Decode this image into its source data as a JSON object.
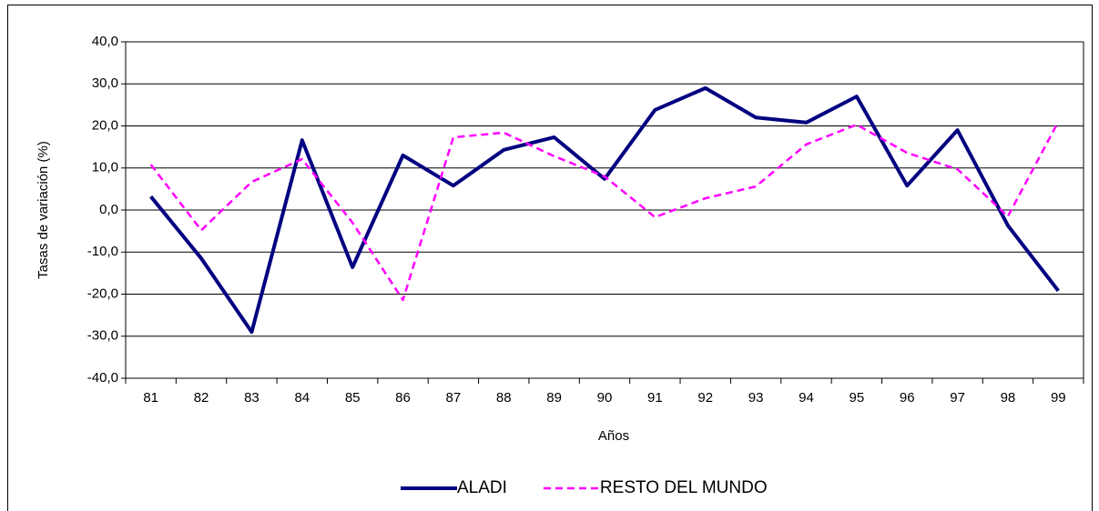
{
  "chart_data": {
    "type": "line",
    "x_label": "Años",
    "y_label": "Tasas de variación (%)",
    "categories": [
      "81",
      "82",
      "83",
      "84",
      "85",
      "86",
      "87",
      "88",
      "89",
      "90",
      "91",
      "92",
      "93",
      "94",
      "95",
      "96",
      "97",
      "98",
      "99"
    ],
    "series": [
      {
        "name": "ALADI",
        "color": "#000080",
        "dash": "solid",
        "values": [
          3.2,
          -11.5,
          -29,
          16.6,
          -13.6,
          13,
          5.8,
          14.3,
          17.3,
          7.4,
          23.8,
          29,
          22,
          20.8,
          27,
          5.8,
          19,
          -3.7,
          -19.2
        ]
      },
      {
        "name": "RESTO DEL MUNDO",
        "color": "#ff00ff",
        "dash": "dashed",
        "values": [
          10.8,
          -4.8,
          6.7,
          12.1,
          -3,
          -21.4,
          17.3,
          18.4,
          12.8,
          8,
          -1.7,
          2.8,
          5.6,
          15.6,
          20.3,
          13.6,
          9.7,
          -1.5,
          21
        ]
      }
    ],
    "ylim": [
      -40,
      40
    ],
    "yticks": [
      {
        "value": -40,
        "label": "-40,0"
      },
      {
        "value": -30,
        "label": "-30,0"
      },
      {
        "value": -20,
        "label": "-20,0"
      },
      {
        "value": -10,
        "label": "-10,0"
      },
      {
        "value": 0,
        "label": "0,0"
      },
      {
        "value": 10,
        "label": "10,0"
      },
      {
        "value": 20,
        "label": "20,0"
      },
      {
        "value": 30,
        "label": "30,0"
      },
      {
        "value": 40,
        "label": "40,0"
      }
    ],
    "grid": true,
    "legend": "bottom"
  }
}
